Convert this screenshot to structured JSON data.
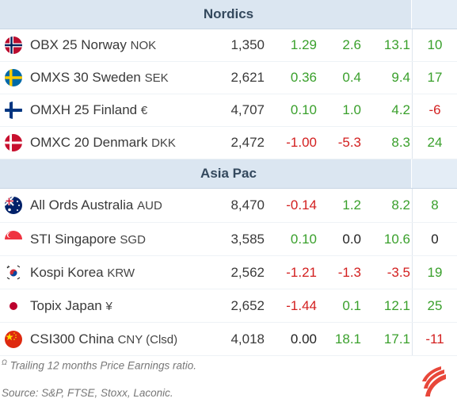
{
  "colors": {
    "positive": "#3aa02c",
    "negative": "#d32020",
    "header_bg": "#dbe6f1"
  },
  "sections": [
    {
      "title": "Nordics",
      "rows": [
        {
          "flag": "norway-flag-icon",
          "name": "OBX 25 Norway",
          "currency": "NOK",
          "price": "1,350",
          "c1": "1.29",
          "c2": "2.6",
          "c3": "13.1",
          "pe": "10"
        },
        {
          "flag": "sweden-flag-icon",
          "name": "OMXS 30 Sweden",
          "currency": "SEK",
          "price": "2,621",
          "c1": "0.36",
          "c2": "0.4",
          "c3": "9.4",
          "pe": "17"
        },
        {
          "flag": "finland-flag-icon",
          "name": "OMXH 25 Finland",
          "currency": "€",
          "price": "4,707",
          "c1": "0.10",
          "c2": "1.0",
          "c3": "4.2",
          "pe": "-6"
        },
        {
          "flag": "denmark-flag-icon",
          "name": "OMXC 20 Denmark",
          "currency": "DKK",
          "price": "2,472",
          "c1": "-1.00",
          "c2": "-5.3",
          "c3": "8.3",
          "pe": "24"
        }
      ]
    },
    {
      "title": "Asia Pac",
      "rows": [
        {
          "flag": "australia-flag-icon",
          "name": "All Ords Australia",
          "currency": "AUD",
          "price": "8,470",
          "c1": "-0.14",
          "c2": "1.2",
          "c3": "8.2",
          "pe": "8"
        },
        {
          "flag": "singapore-flag-icon",
          "name": "STI Singapore",
          "currency": "SGD",
          "price": "3,585",
          "c1": "0.10",
          "c2": "0.0",
          "c3": "10.6",
          "pe": "0"
        },
        {
          "flag": "korea-flag-icon",
          "name": "Kospi Korea",
          "currency": "KRW",
          "price": "2,562",
          "c1": "-1.21",
          "c2": "-1.3",
          "c3": "-3.5",
          "pe": "19"
        },
        {
          "flag": "japan-flag-icon",
          "name": "Topix Japan",
          "currency": "¥",
          "price": "2,652",
          "c1": "-1.44",
          "c2": "0.1",
          "c3": "12.1",
          "pe": "25"
        },
        {
          "flag": "china-flag-icon",
          "name": "CSI300 China",
          "currency": "CNY (Clsd)",
          "price": "4,018",
          "c1": "0.00",
          "c2": "18.1",
          "c3": "17.1",
          "pe": "-11"
        }
      ]
    }
  ],
  "footnote": {
    "marker": "Ω",
    "text": "Trailing 12 months Price Earnings ratio."
  },
  "source": "Source: S&P, FTSE, Stoxx, Laconic.",
  "logo_icon": "laconic-logo-icon"
}
